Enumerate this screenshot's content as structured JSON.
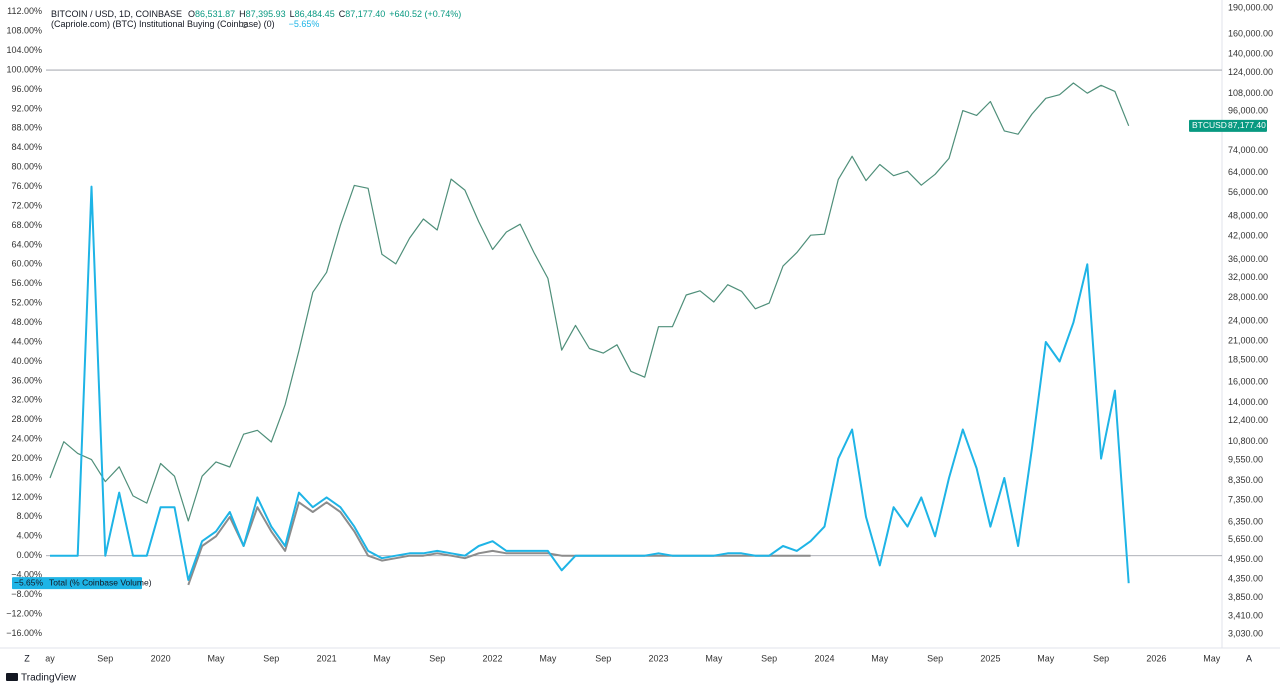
{
  "chart_data": {
    "type": "line",
    "header": {
      "symbol": "BITCOIN / USD, 1D, COINBASE",
      "ohlc": [
        {
          "label": "O",
          "value": "86,531.87"
        },
        {
          "label": "H",
          "value": "87,395.93"
        },
        {
          "label": "L",
          "value": "86,484.45"
        },
        {
          "label": "C",
          "value": "87,177.40"
        }
      ],
      "change": "+640.52 (+0.74%)",
      "indicator": "(Capriole.com) (BTC) Institutional Buying (Coinbase) (0)",
      "indicator_value": "−5.65%"
    },
    "price_tag": {
      "symbol": "BTCUSD",
      "label": "87,177.40"
    },
    "indicator_tag": {
      "label": "−5.65%"
    },
    "corner_labels": [
      "Z",
      "A"
    ],
    "brand": "TradingView",
    "categories": [
      "ay",
      null,
      null,
      null,
      "Sep",
      null,
      null,
      null,
      "2020",
      null,
      null,
      null,
      "May",
      null,
      null,
      null,
      "Sep",
      null,
      null,
      null,
      "2021",
      null,
      null,
      null,
      "May",
      null,
      null,
      null,
      "Sep",
      null,
      null,
      null,
      "2022",
      null,
      null,
      null,
      "May",
      null,
      null,
      null,
      "Sep",
      null,
      null,
      null,
      "2023",
      null,
      null,
      null,
      "May",
      null,
      null,
      null,
      "Sep",
      null,
      null,
      null,
      "2024",
      null,
      null,
      null,
      "May",
      null,
      null,
      null,
      "Sep",
      null,
      null,
      null,
      "2025",
      null,
      null,
      null,
      "May",
      null,
      null,
      null,
      "Sep",
      null,
      null,
      null,
      "2026",
      null,
      null,
      null,
      "May"
    ],
    "series": [
      {
        "name": "BTCUSD",
        "color": "#4f8f7a",
        "axis": "y2",
        "values": [
          8500,
          10800,
          10000,
          9600,
          8300,
          9150,
          7550,
          7200,
          9350,
          8600,
          6400,
          8600,
          9450,
          9140,
          11350,
          11650,
          10780,
          13800,
          19700,
          29000,
          33100,
          45200,
          58800,
          57700,
          37300,
          35000,
          41500,
          47100,
          43800,
          61300,
          57000,
          46300,
          38500,
          43200,
          45500,
          37700,
          31800,
          19800,
          23300,
          20000,
          19400,
          20500,
          17200,
          16550,
          23100,
          23100,
          28500,
          29300,
          27200,
          30500,
          29200,
          26000,
          27000,
          34500,
          37700,
          42300,
          42600,
          61200,
          71300,
          60700,
          67500,
          62700,
          64600,
          58900,
          63300,
          70300,
          96400,
          93400,
          102400,
          84300,
          82500,
          94200,
          104600,
          107100,
          115700,
          108200,
          114000,
          109500,
          87177.4,
          null,
          null,
          null,
          null,
          null,
          null
        ]
      },
      {
        "color": "#8c8c8c",
        "values": [
          null,
          null,
          null,
          null,
          null,
          null,
          null,
          null,
          null,
          null,
          -6,
          2,
          4,
          8,
          2,
          10,
          5,
          1,
          11,
          9,
          11,
          9,
          5,
          0,
          -1,
          -0.5,
          0,
          0,
          0.5,
          0,
          -0.5,
          0.5,
          1,
          0.5,
          0.5,
          0.5,
          0.5,
          0,
          0,
          0,
          0,
          0,
          0,
          0,
          0,
          0,
          0,
          0,
          0,
          0,
          0,
          0,
          0,
          0,
          0,
          0,
          null,
          null,
          null,
          null,
          null,
          null,
          null,
          null,
          null,
          null,
          null,
          null,
          null,
          null,
          null,
          null,
          null,
          null,
          null,
          null,
          null,
          null,
          null,
          null,
          null,
          null,
          null,
          null,
          null
        ]
      },
      {
        "name": "Total (% Coinbase Volume)",
        "color": "#1eb4e6",
        "values": [
          0,
          0,
          0,
          76,
          0,
          13,
          0,
          0,
          10,
          10,
          -5,
          3,
          5,
          9,
          2,
          12,
          6,
          2,
          13,
          10,
          12,
          10,
          6,
          1,
          -0.5,
          0,
          0.5,
          0.5,
          1,
          0.5,
          0,
          2,
          3,
          1,
          1,
          1,
          1,
          -3,
          0,
          0,
          0,
          0,
          0,
          0,
          0.5,
          0,
          0,
          0,
          0,
          0.5,
          0.5,
          0,
          0,
          2,
          1,
          3,
          6,
          20,
          26,
          8,
          -2,
          10,
          6,
          12,
          4,
          16,
          26,
          18,
          6,
          16,
          2,
          22,
          44,
          40,
          48,
          60,
          20,
          34,
          -5.65,
          null,
          null,
          null,
          null,
          null,
          null
        ]
      }
    ],
    "ylim": [
      -19,
      113.4
    ],
    "yticks": [
      {
        "value": 112,
        "label": "112.00%"
      },
      {
        "value": 108,
        "label": "108.00%"
      },
      {
        "value": 104,
        "label": "104.00%"
      },
      {
        "value": 100,
        "label": "100.00%"
      },
      {
        "value": 96,
        "label": "96.00%"
      },
      {
        "value": 92,
        "label": "92.00%"
      },
      {
        "value": 88,
        "label": "88.00%"
      },
      {
        "value": 84,
        "label": "84.00%"
      },
      {
        "value": 80,
        "label": "80.00%"
      },
      {
        "value": 76,
        "label": "76.00%"
      },
      {
        "value": 72,
        "label": "72.00%"
      },
      {
        "value": 68,
        "label": "68.00%"
      },
      {
        "value": 64,
        "label": "64.00%"
      },
      {
        "value": 60,
        "label": "60.00%"
      },
      {
        "value": 56,
        "label": "56.00%"
      },
      {
        "value": 52,
        "label": "52.00%"
      },
      {
        "value": 48,
        "label": "48.00%"
      },
      {
        "value": 44,
        "label": "44.00%"
      },
      {
        "value": 40,
        "label": "40.00%"
      },
      {
        "value": 36,
        "label": "36.00%"
      },
      {
        "value": 32,
        "label": "32.00%"
      },
      {
        "value": 28,
        "label": "28.00%"
      },
      {
        "value": 24,
        "label": "24.00%"
      },
      {
        "value": 20,
        "label": "20.00%"
      },
      {
        "value": 16,
        "label": "16.00%"
      },
      {
        "value": 12,
        "label": "12.00%"
      },
      {
        "value": 8,
        "label": "8.00%"
      },
      {
        "value": 4,
        "label": "4.00%"
      },
      {
        "value": 0,
        "label": "0.00%"
      },
      {
        "value": -4,
        "label": "−4.00%"
      },
      {
        "value": -8,
        "label": "−8.00%"
      },
      {
        "value": -12,
        "label": "−12.00%"
      },
      {
        "value": -16,
        "label": "−16.00%"
      }
    ],
    "y2lim": [
      2762,
      193800
    ],
    "y2log": true,
    "y2ticks": [
      {
        "value": 190000,
        "label": "190,000.00"
      },
      {
        "value": 160000,
        "label": "160,000.00"
      },
      {
        "value": 140000,
        "label": "140,000.00"
      },
      {
        "value": 124000,
        "label": "124,000.00"
      },
      {
        "value": 108000,
        "label": "108,000.00"
      },
      {
        "value": 96000,
        "label": "96,000.00"
      },
      {
        "value": 74000,
        "label": "74,000.00"
      },
      {
        "value": 64000,
        "label": "64,000.00"
      },
      {
        "value": 56000,
        "label": "56,000.00"
      },
      {
        "value": 48000,
        "label": "48,000.00"
      },
      {
        "value": 42000,
        "label": "42,000.00"
      },
      {
        "value": 36000,
        "label": "36,000.00"
      },
      {
        "value": 32000,
        "label": "32,000.00"
      },
      {
        "value": 28000,
        "label": "28,000.00"
      },
      {
        "value": 24000,
        "label": "24,000.00"
      },
      {
        "value": 21000,
        "label": "21,000.00"
      },
      {
        "value": 18500,
        "label": "18,500.00"
      },
      {
        "value": 16000,
        "label": "16,000.00"
      },
      {
        "value": 14000,
        "label": "14,000.00"
      },
      {
        "value": 12400,
        "label": "12,400.00"
      },
      {
        "value": 10800,
        "label": "10,800.00"
      },
      {
        "value": 9550,
        "label": "9,550.00"
      },
      {
        "value": 8350,
        "label": "8,350.00"
      },
      {
        "value": 7350,
        "label": "7,350.00"
      },
      {
        "value": 6350,
        "label": "6,350.00"
      },
      {
        "value": 5650,
        "label": "5,650.00"
      },
      {
        "value": 4950,
        "label": "4,950.00"
      },
      {
        "value": 4350,
        "label": "4,350.00"
      },
      {
        "value": 3850,
        "label": "3,850.00"
      },
      {
        "value": 3410,
        "label": "3,410.00"
      },
      {
        "value": 3030,
        "label": "3,030.00"
      }
    ],
    "hlines": [
      100,
      0
    ],
    "grid": false
  }
}
